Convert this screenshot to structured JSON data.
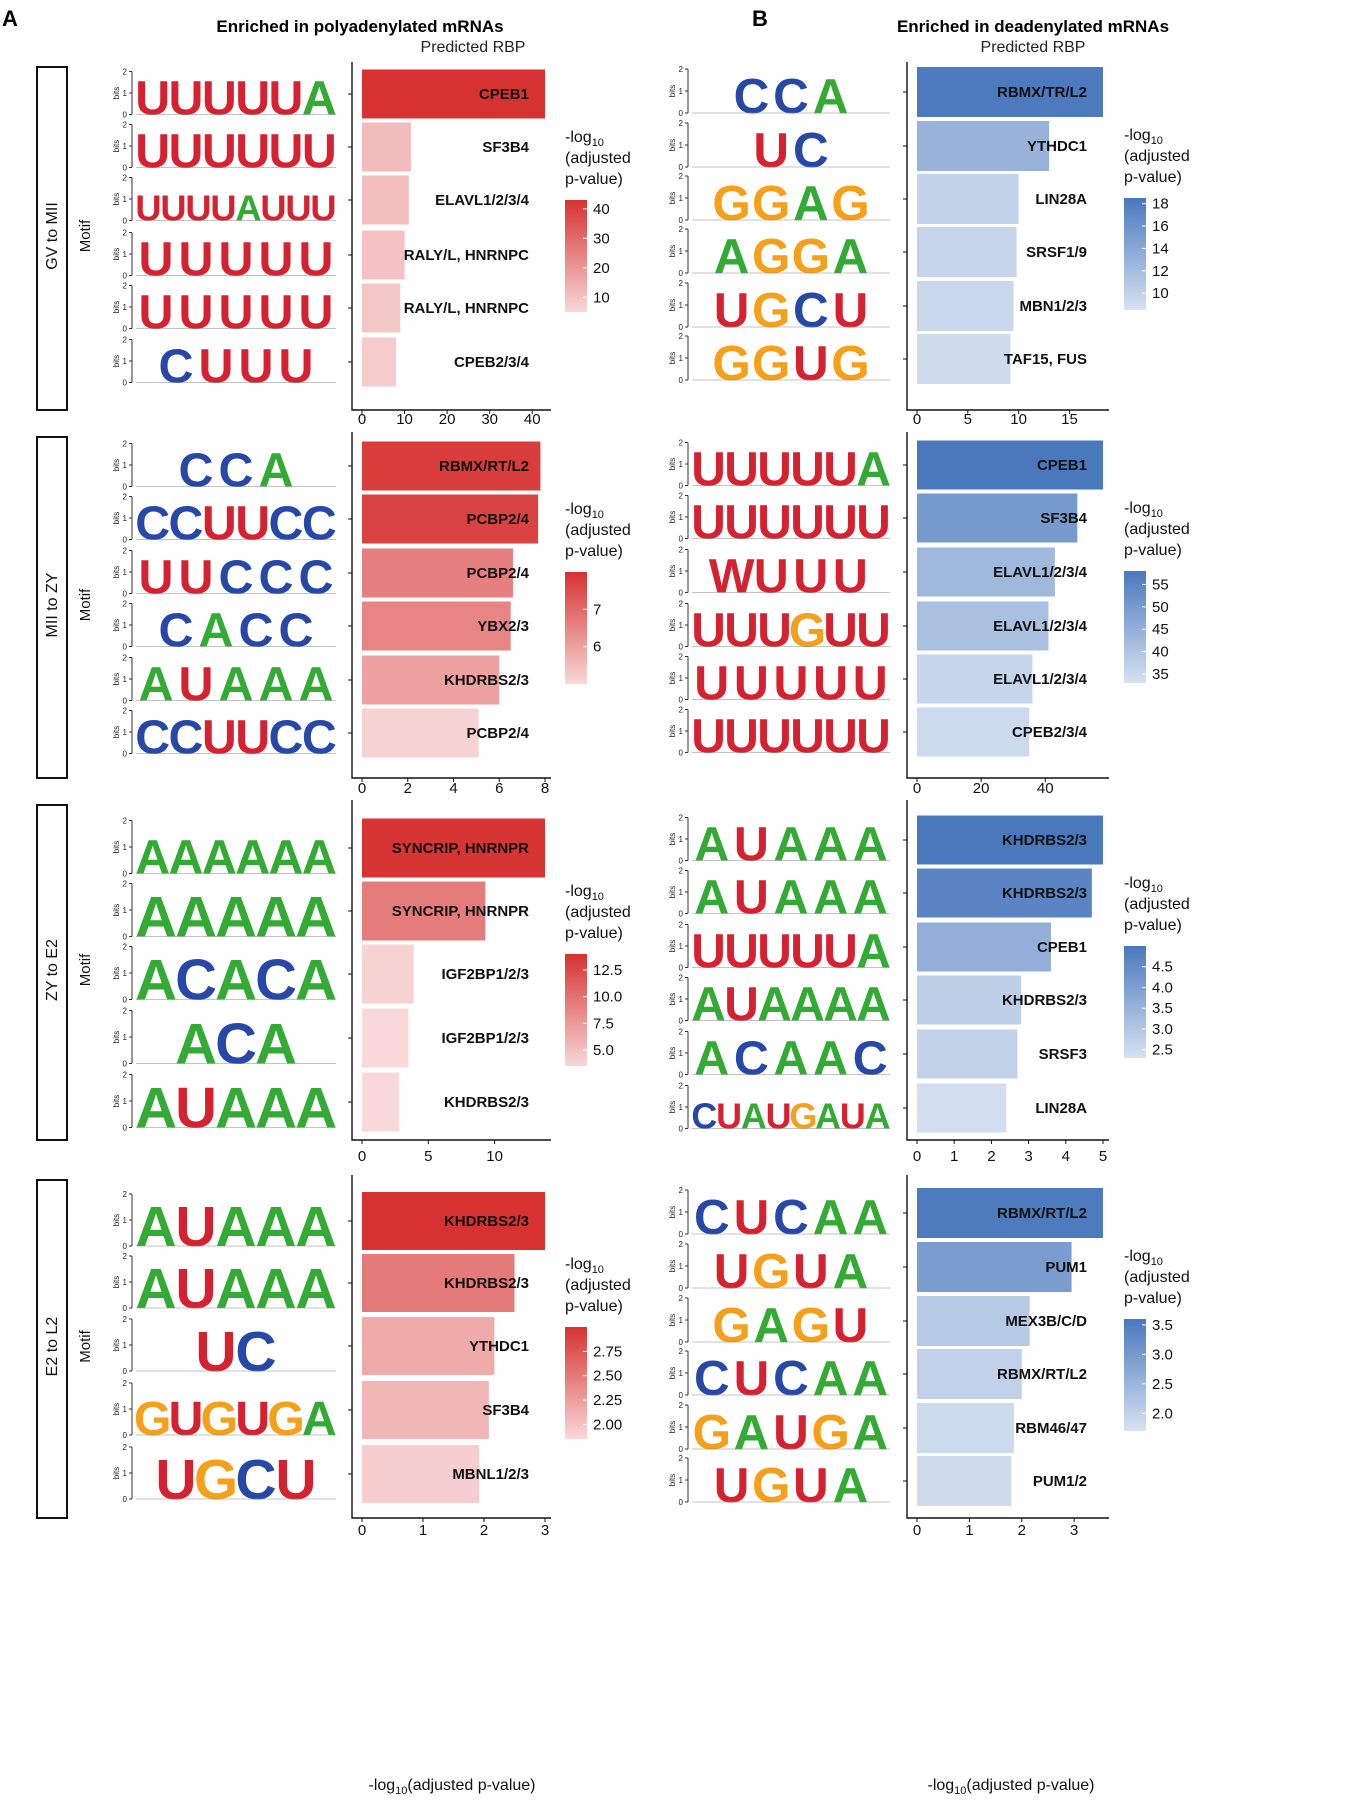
{
  "panels": [
    {
      "letter": "A",
      "title": "Enriched in polyadenylated mRNAs"
    },
    {
      "letter": "B",
      "title": "Enriched in deadenylated mRNAs"
    }
  ],
  "header_label": "Predicted RBP",
  "motif_label": "Motif",
  "bits_label": "bits",
  "legend_title_lines": [
    "-log",
    "10",
    "(adjusted",
    "p-value)"
  ],
  "xaxis_title_parts": [
    "-log",
    "10",
    "(adjusted p-value)"
  ],
  "colors": {
    "poly_dark": "#d63231",
    "poly_light": "#f8d8d9",
    "dead_dark": "#4a78bd",
    "dead_light": "#d7e2f1",
    "A": "#33aa33",
    "U": "#d42231",
    "G": "#f4a01a",
    "C": "#2848a8"
  },
  "chart_data": [
    {
      "type": "bar",
      "panel": "A",
      "stage": "GV to MII",
      "categories": [
        "CPEB1",
        "SF3B4",
        "ELAVL1/2/3/4",
        "RALY/L, HNRNPC",
        "RALY/L, HNRNPC",
        "CPEB2/3/4"
      ],
      "values": [
        43,
        11.5,
        11,
        10,
        9,
        8
      ],
      "xlim": [
        0,
        43
      ],
      "xticks": [
        0,
        10,
        20,
        30,
        40
      ],
      "legend": {
        "min": 5,
        "max": 43,
        "ticks": [
          40,
          30,
          20,
          10
        ]
      },
      "motifs": [
        "UUUUUA",
        "UUUUUU",
        "UUUUAUUU",
        "UUUUU",
        "UUUUU",
        "CUUU"
      ]
    },
    {
      "type": "bar",
      "panel": "B",
      "stage": "GV to MII",
      "categories": [
        "RBMX/TR/L2",
        "YTHDC1",
        "LIN28A",
        "SRSF1/9",
        "MBN1/2/3",
        "TAF15, FUS"
      ],
      "values": [
        18.3,
        13,
        10,
        9.8,
        9.5,
        9.2
      ],
      "xlim": [
        0,
        18.3
      ],
      "xticks": [
        0,
        5,
        10,
        15
      ],
      "legend": {
        "min": 8.5,
        "max": 18.5,
        "ticks": [
          18,
          16,
          14,
          12,
          10
        ]
      },
      "motifs": [
        "CCA",
        "UC",
        "GGAG",
        "AGGA",
        "UGCU",
        "GGUG"
      ]
    },
    {
      "type": "bar",
      "panel": "A",
      "stage": "MII to ZY",
      "categories": [
        "RBMX/RT/L2",
        "PCBP2/4",
        "PCBP2/4",
        "YBX2/3",
        "KHDRBS2/3",
        "PCBP2/4"
      ],
      "values": [
        7.8,
        7.7,
        6.6,
        6.5,
        6.0,
        5.1
      ],
      "xlim": [
        0,
        8
      ],
      "xticks": [
        0,
        2,
        4,
        6,
        8
      ],
      "legend": {
        "min": 5.0,
        "max": 8.0,
        "ticks": [
          7,
          6
        ]
      },
      "motifs": [
        "CCA",
        "CCUUCC",
        "UUCCC",
        "CACC",
        "AUAAA",
        "CCUUCC"
      ]
    },
    {
      "type": "bar",
      "panel": "B",
      "stage": "MII to ZY",
      "categories": [
        "CPEB1",
        "SF3B4",
        "ELAVL1/2/3/4",
        "ELAVL1/2/3/4",
        "ELAVL1/2/3/4",
        "CPEB2/3/4"
      ],
      "values": [
        58,
        50,
        43,
        41,
        36,
        35
      ],
      "xlim": [
        0,
        58
      ],
      "xticks": [
        0,
        20,
        40
      ],
      "legend": {
        "min": 33,
        "max": 58,
        "ticks": [
          55,
          50,
          45,
          40,
          35
        ]
      },
      "motifs": [
        "UUUUUA",
        "UUUUUU",
        "WUUU",
        "UUUGUU",
        "UUUUU",
        "UUUUUU"
      ]
    },
    {
      "type": "bar",
      "panel": "A",
      "stage": "ZY to E2",
      "categories": [
        "SYNCRIP, HNRNPR",
        "SYNCRIP, HNRNPR",
        "IGF2BP1/2/3",
        "IGF2BP1/2/3",
        "KHDRBS2/3"
      ],
      "values": [
        13.8,
        9.3,
        3.9,
        3.5,
        2.8
      ],
      "xlim": [
        0,
        13.8
      ],
      "xticks": [
        0,
        5,
        10
      ],
      "legend": {
        "min": 3.5,
        "max": 14,
        "ticks": [
          12.5,
          10.0,
          7.5,
          5.0
        ]
      },
      "motifs": [
        "AAAAAA",
        "AAAAA",
        "ACACA",
        "ACA",
        "AUAAA"
      ]
    },
    {
      "type": "bar",
      "panel": "B",
      "stage": "ZY to E2",
      "categories": [
        "KHDRBS2/3",
        "KHDRBS2/3",
        "CPEB1",
        "KHDRBS2/3",
        "SRSF3",
        "LIN28A"
      ],
      "values": [
        5.0,
        4.7,
        3.6,
        2.8,
        2.7,
        2.4
      ],
      "xlim": [
        0,
        5
      ],
      "xticks": [
        0,
        1,
        2,
        3,
        4,
        5
      ],
      "legend": {
        "min": 2.3,
        "max": 5.0,
        "ticks": [
          4.5,
          4.0,
          3.5,
          3.0,
          2.5
        ]
      },
      "motifs": [
        "AUAAA",
        "AUAAA",
        "UUUUUA",
        "AUAAAA",
        "ACAAC",
        "CUAUGAUA"
      ]
    },
    {
      "type": "bar",
      "panel": "A",
      "stage": "E2 to L2",
      "categories": [
        "KHDRBS2/3",
        "KHDRBS2/3",
        "YTHDC1",
        "SF3B4",
        "MBNL1/2/3"
      ],
      "values": [
        3.0,
        2.5,
        2.17,
        2.08,
        1.92
      ],
      "xlim": [
        0,
        3
      ],
      "xticks": [
        0,
        1,
        2,
        3
      ],
      "legend": {
        "min": 1.85,
        "max": 3.0,
        "ticks": [
          2.75,
          2.5,
          2.25,
          2.0
        ]
      },
      "motifs": [
        "AUAAA",
        "AUAAA",
        "UC",
        "GUGUGA",
        "UGCU"
      ]
    },
    {
      "type": "bar",
      "panel": "B",
      "stage": "E2 to L2",
      "categories": [
        "RBMX/RT/L2",
        "PUM1",
        "MEX3B/C/D",
        "RBMX/RT/L2",
        "RBM46/47",
        "PUM1/2"
      ],
      "values": [
        3.55,
        2.95,
        2.15,
        2.0,
        1.85,
        1.8
      ],
      "xlim": [
        0,
        3.55
      ],
      "xticks": [
        0,
        1,
        2,
        3
      ],
      "legend": {
        "min": 1.7,
        "max": 3.6,
        "ticks": [
          3.5,
          3.0,
          2.5,
          2.0
        ]
      },
      "motifs": [
        "CUCAA",
        "UGUA",
        "GAGU",
        "CUCAA",
        "GAUGA",
        "UGUA"
      ]
    }
  ]
}
